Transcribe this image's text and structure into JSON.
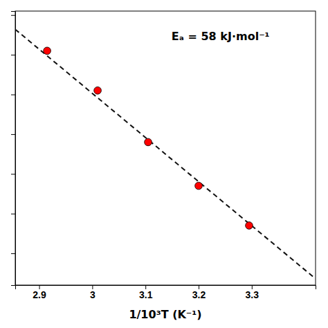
{
  "chart_data": {
    "type": "scatter",
    "x_label": "1/10³T (K⁻¹)",
    "annotation": "Eₐ = 58 kJ·mol⁻¹",
    "series": [
      {
        "type": "scatter",
        "color": "#ff0000",
        "marker": "circle",
        "x": [
          2.915,
          3.01,
          3.105,
          3.2,
          3.295
        ],
        "values": [
          5.05,
          4.55,
          3.9,
          3.35,
          2.85
        ]
      },
      {
        "type": "line",
        "color": "#111111",
        "line_style": "dashed",
        "x": [
          2.855,
          3.42
        ],
        "values": [
          5.32,
          2.18
        ]
      }
    ],
    "xlim": [
      2.855,
      3.42
    ],
    "ylim": [
      2.1,
      5.55
    ],
    "xticks": [
      2.9,
      3,
      3.1,
      3.2,
      3.3
    ],
    "yticks": [
      2.5,
      3,
      3.5,
      4,
      4.5,
      5,
      5.5
    ],
    "tick_labels": "x",
    "grid": false
  }
}
